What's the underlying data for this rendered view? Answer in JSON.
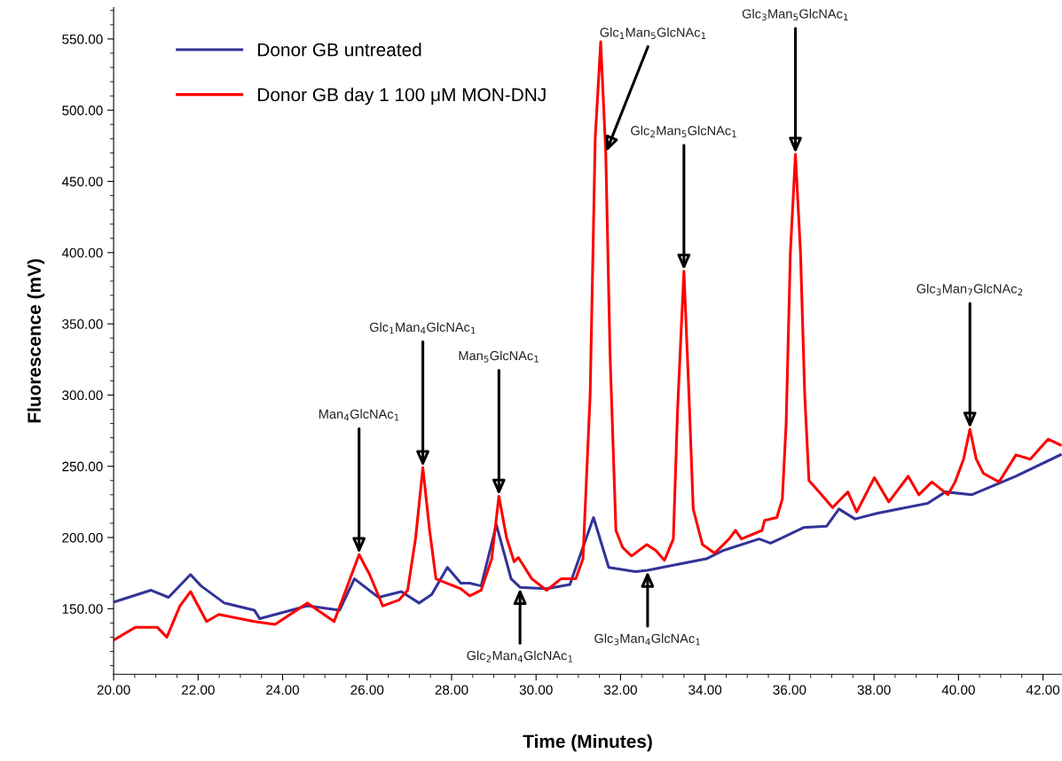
{
  "chart_data": {
    "type": "line",
    "xlabel": "Time (Minutes)",
    "ylabel": "Fluorescence (mV)",
    "xlim": [
      20,
      42.45
    ],
    "ylim": [
      104,
      572
    ],
    "xticks": [
      {
        "value": 20,
        "label": "20.00"
      },
      {
        "value": 22,
        "label": "22.00"
      },
      {
        "value": 24,
        "label": "24.00"
      },
      {
        "value": 26,
        "label": "26.00"
      },
      {
        "value": 28,
        "label": "28.00"
      },
      {
        "value": 30,
        "label": "30.00"
      },
      {
        "value": 32,
        "label": "32.00"
      },
      {
        "value": 34,
        "label": "34.00"
      },
      {
        "value": 36,
        "label": "36.00"
      },
      {
        "value": 38,
        "label": "38.00"
      },
      {
        "value": 40,
        "label": "40.00"
      },
      {
        "value": 42,
        "label": "42.00"
      }
    ],
    "yticks": [
      {
        "value": 150,
        "label": "150.00"
      },
      {
        "value": 200,
        "label": "200.00"
      },
      {
        "value": 250,
        "label": "250.00"
      },
      {
        "value": 300,
        "label": "300.00"
      },
      {
        "value": 350,
        "label": "350.00"
      },
      {
        "value": 400,
        "label": "400.00"
      },
      {
        "value": 450,
        "label": "450.00"
      },
      {
        "value": 500,
        "label": "500.00"
      },
      {
        "value": 550,
        "label": "550.00"
      }
    ],
    "legend": "top left",
    "grid": false,
    "marker": "none",
    "line_style": "solid",
    "series": [
      {
        "name": "Donor GB untreated",
        "color": "#333399",
        "x": [
          20.04,
          20.88,
          21.3,
          21.82,
          22.07,
          22.62,
          23.33,
          23.46,
          24.59,
          25.35,
          25.7,
          26.27,
          26.81,
          27.23,
          27.53,
          27.9,
          28.22,
          28.43,
          28.7,
          29.06,
          29.41,
          29.62,
          30.25,
          30.8,
          31.36,
          31.72,
          32.35,
          32.64,
          32.98,
          34.03,
          34.44,
          35.28,
          35.55,
          35.77,
          36.33,
          36.88,
          37.17,
          37.55,
          38.07,
          39.27,
          39.69,
          40.31,
          41.36,
          42.41
        ],
        "values": [
          155,
          163,
          158,
          174,
          166,
          154,
          149,
          143,
          152,
          149,
          171,
          158,
          162,
          154,
          160,
          179,
          168,
          168,
          166,
          209,
          171,
          165,
          164,
          167,
          214,
          179,
          176,
          177,
          179,
          185,
          191,
          199,
          196,
          199,
          207,
          208,
          220,
          213,
          217,
          224,
          232,
          230,
          243,
          258
        ]
      },
      {
        "name": "Donor GB day 1 100 μM MON-DNJ",
        "color": "#ff0000",
        "x": [
          20.0,
          20.52,
          21.03,
          21.26,
          21.57,
          21.82,
          22.2,
          22.49,
          23.33,
          23.82,
          24.59,
          25.22,
          25.81,
          26.06,
          26.37,
          26.75,
          26.96,
          27.15,
          27.32,
          27.48,
          27.63,
          28.22,
          28.43,
          28.7,
          28.95,
          29.12,
          29.3,
          29.48,
          29.58,
          29.9,
          30.25,
          30.59,
          30.94,
          31.11,
          31.28,
          31.4,
          31.53,
          31.65,
          31.75,
          31.89,
          32.05,
          32.26,
          32.62,
          32.83,
          33.04,
          33.25,
          33.35,
          33.5,
          33.62,
          33.72,
          33.94,
          34.23,
          34.57,
          34.72,
          34.86,
          35.35,
          35.41,
          35.7,
          35.83,
          35.92,
          36.02,
          36.14,
          36.26,
          36.36,
          36.46,
          36.67,
          37.02,
          37.38,
          37.59,
          38.01,
          38.35,
          38.81,
          39.06,
          39.37,
          39.75,
          39.92,
          40.12,
          40.27,
          40.42,
          40.59,
          40.96,
          41.36,
          41.7,
          42.12,
          42.41
        ],
        "values": [
          128,
          137,
          137,
          130,
          152,
          162,
          141,
          146,
          141,
          139,
          154,
          141,
          188,
          174,
          152,
          156,
          163,
          200,
          249,
          205,
          171,
          164,
          159,
          163,
          185,
          229,
          200,
          183,
          186,
          171,
          163,
          171,
          171,
          185,
          300,
          480,
          548,
          470,
          330,
          205,
          193,
          187,
          195,
          191,
          184,
          199,
          290,
          387,
          300,
          220,
          195,
          189,
          199,
          205,
          199,
          205,
          212,
          214,
          227,
          280,
          400,
          469,
          400,
          300,
          240,
          233,
          221,
          232,
          218,
          242,
          225,
          243,
          230,
          239,
          230,
          239,
          255,
          276,
          255,
          245,
          239,
          258,
          255,
          269,
          265
        ]
      }
    ],
    "annotations": [
      {
        "text": "Man$_{4}$GlcNAc$_{1}$",
        "x": 25.81,
        "y": 188
      },
      {
        "text": "Glc$_{1}$Man$_{4}$GlcNAc$_{1}$",
        "x": 27.32,
        "y": 249
      },
      {
        "text": "Man$_{5}$GlcNAc$_{1}$",
        "x": 29.12,
        "y": 229
      },
      {
        "text": "Glc$_{2}$Man$_{4}$GlcNAc$_{1}$",
        "x": 29.62,
        "y": 165
      },
      {
        "text": "Glc$_{1}$Man$_{5}$GlcNAc$_{1}$",
        "x": 31.65,
        "y": 470
      },
      {
        "text": "Glc$_{3}$Man$_{4}$GlcNAc$_{1}$",
        "x": 32.64,
        "y": 177
      },
      {
        "text": "Glc$_{2}$Man$_{5}$GlcNAc$_{1}$",
        "x": 33.5,
        "y": 387
      },
      {
        "text": "Glc$_{3}$Man$_{5}$GlcNAc$_{1}$",
        "x": 36.14,
        "y": 469
      },
      {
        "text": "Glc$_{3}$Man$_{7}$GlcNAc$_{2}$",
        "x": 40.27,
        "y": 276
      }
    ]
  }
}
